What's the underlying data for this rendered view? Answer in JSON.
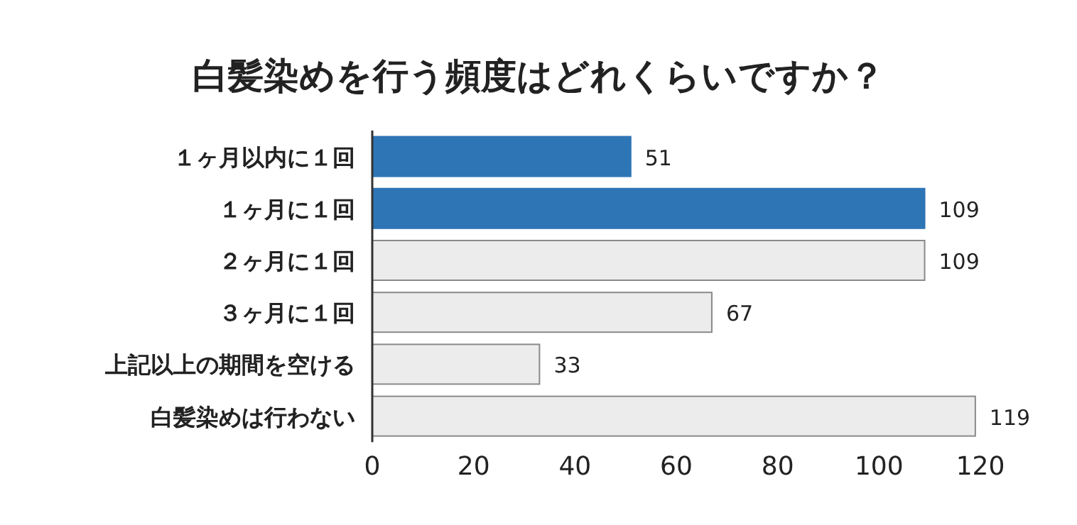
{
  "chart_data": {
    "type": "bar",
    "orientation": "horizontal",
    "title": "白髪染めを行う頻度はどれくらいですか？",
    "categories": [
      "１ヶ月以内に１回",
      "１ヶ月に１回",
      "２ヶ月に１回",
      "３ヶ月に１回",
      "上記以上の期間を空ける",
      "白髪染めは行わない"
    ],
    "values": [
      51,
      109,
      109,
      67,
      33,
      119
    ],
    "colors": [
      "#2e75b6",
      "#2e75b6",
      "#ececec",
      "#ececec",
      "#ececec",
      "#ececec"
    ],
    "xlim": [
      0,
      120
    ],
    "xticks": [
      0,
      20,
      40,
      60,
      80,
      100,
      120
    ],
    "data_labels": true
  }
}
